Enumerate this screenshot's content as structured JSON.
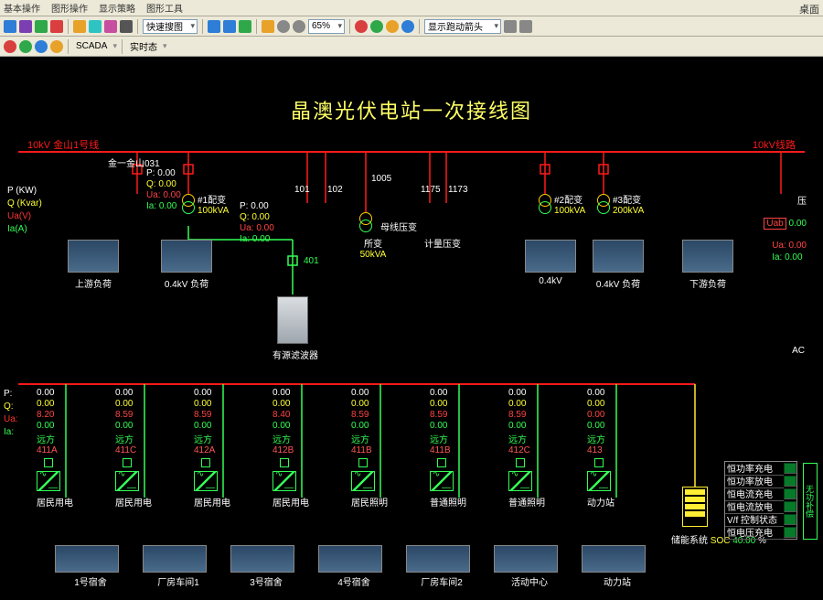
{
  "window": {
    "title_right": "桌面"
  },
  "menu": {
    "items": [
      "基本操作",
      "图形操作",
      "显示策略",
      "图形工具"
    ]
  },
  "toolbar": {
    "scada_label": "SCADA",
    "realtime_label": "实时态",
    "combo_search": "快速搜图",
    "zoom": "65%",
    "scroll_arrows": "显示跑动箭头",
    "icon_colors": [
      "#2e7dd7",
      "#7b3fb3",
      "#2fa84a",
      "#d93f3f",
      "#e8a22a",
      "#2ec4c4",
      "#c74fa0",
      "#555555"
    ]
  },
  "diagram": {
    "title": "晶澳光伏电站一次接线图",
    "feeder_left": "10kV 金山1号线",
    "feeder_right": "10kV线路",
    "bus_color": "#ff1a1a",
    "green": "#33ff55",
    "yellow": "#ffee33",
    "switch_label_1": "金一金山031",
    "left_legend": {
      "P": "P (KW)",
      "Q": "Q (Kvar)",
      "Ua": "Ua(V)",
      "Ia": "Ia(A)"
    },
    "set031": {
      "P": "0.00",
      "Q": "0.00",
      "Ua": "0.00",
      "Ia": "0.00"
    },
    "tx1": {
      "label": "#1配变",
      "rating": "100kVA"
    },
    "tx2": {
      "label": "#2配变",
      "rating": "100kVA"
    },
    "tx3": {
      "label": "#3配变",
      "rating": "200kVA"
    },
    "center_vals": {
      "P": "0.00",
      "Q": "0.00",
      "Ua": "0.00",
      "Ia": "0.00"
    },
    "node101": "101",
    "node102": "102",
    "node1005": "1005",
    "node1175": "1175",
    "node1173": "1173",
    "pt_label": "所变",
    "pt_rating": "50kVA",
    "busPT_label": "母线压变",
    "meterPT_label": "计量压变",
    "cb401": "401",
    "filter_label": "有源滤波器",
    "right_legend": {
      "Ua": "Ua:",
      "Ia": "Ia:",
      "Ua_val": "0.00",
      "Ia_val": "0.00",
      "Uab": "Uab",
      "Uab_val": "0.00",
      "AC": "AC"
    },
    "thumbs": [
      {
        "label": "上游负荷"
      },
      {
        "label": "0.4kV 负荷"
      },
      {
        "label": "0.4kV"
      },
      {
        "label": "0.4kV 负荷"
      },
      {
        "label": "下游负荷"
      }
    ],
    "bays": [
      {
        "remote": "远方",
        "bus": "411A",
        "P": "0.00",
        "Q": "0.00",
        "Ua": "8.20",
        "Ia": "0.00",
        "load": "居民用电"
      },
      {
        "remote": "远方",
        "bus": "411C",
        "P": "0.00",
        "Q": "0.00",
        "Ua": "8.59",
        "Ia": "0.00",
        "load": "居民用电"
      },
      {
        "remote": "远方",
        "bus": "412A",
        "P": "0.00",
        "Q": "0.00",
        "Ua": "8.59",
        "Ia": "0.00",
        "load": "居民用电"
      },
      {
        "remote": "远方",
        "bus": "412B",
        "P": "0.00",
        "Q": "0.00",
        "Ua": "8.40",
        "Ia": "0.00",
        "load": "居民用电"
      },
      {
        "remote": "远方",
        "bus": "411B",
        "P": "0.00",
        "Q": "0.00",
        "Ua": "8.59",
        "Ia": "0.00",
        "load": "居民照明"
      },
      {
        "remote": "远方",
        "bus": "411B",
        "P": "0.00",
        "Q": "0.00",
        "Ua": "8.59",
        "Ia": "0.00",
        "load": "普通照明"
      },
      {
        "remote": "远方",
        "bus": "412C",
        "P": "0.00",
        "Q": "0.00",
        "Ua": "8.59",
        "Ia": "0.00",
        "load": "普通照明"
      },
      {
        "remote": "远方",
        "bus": "413",
        "P": "0.00",
        "Q": "0.00",
        "Ua": "0.00",
        "Ia": "0.00",
        "load": "动力站"
      }
    ],
    "bottom_labels": [
      "1号宿舍",
      "厂房车间1",
      "3号宿舍",
      "4号宿舍",
      "厂房车间2",
      "活动中心",
      "动力站"
    ],
    "storage": {
      "label": "储能系统",
      "soc_label": "SOC",
      "soc_val": "40.00",
      "unit": "%"
    },
    "status": {
      "rows": [
        "恒功率充电",
        "恒功率放电",
        "恒电流充电",
        "恒电流放电",
        "V/f 控制状态",
        "恒电压充电"
      ]
    },
    "side_box": "无功补偿"
  }
}
